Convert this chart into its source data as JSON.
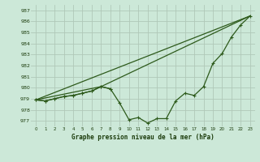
{
  "title": "Graphe pression niveau de la mer (hPa)",
  "bg_color": "#cce8d8",
  "grid_color": "#b0c8b8",
  "line_color": "#2d5a1b",
  "xlim": [
    -0.5,
    23.5
  ],
  "ylim": [
    976.5,
    987.5
  ],
  "yticks": [
    977,
    978,
    979,
    980,
    981,
    982,
    983,
    984,
    985,
    986,
    987
  ],
  "xticks": [
    0,
    1,
    2,
    3,
    4,
    5,
    6,
    7,
    8,
    9,
    10,
    11,
    12,
    13,
    14,
    15,
    16,
    17,
    18,
    19,
    20,
    21,
    22,
    23
  ],
  "line1_x": [
    0,
    1,
    2,
    3,
    4,
    5,
    6,
    7,
    8
  ],
  "line1_y": [
    978.9,
    978.8,
    979.0,
    979.2,
    979.3,
    979.5,
    979.7,
    980.1,
    979.9
  ],
  "line2_x": [
    0,
    1,
    2,
    3,
    4,
    5,
    6,
    7,
    8,
    9,
    10,
    11,
    12,
    13,
    14,
    15,
    16,
    17,
    18,
    19,
    20,
    21,
    22,
    23
  ],
  "line2_y": [
    978.9,
    978.8,
    979.0,
    979.2,
    979.3,
    979.5,
    979.7,
    980.1,
    979.9,
    978.6,
    977.1,
    977.3,
    976.8,
    977.2,
    977.2,
    978.8,
    979.5,
    979.3,
    980.1,
    982.2,
    983.1,
    984.6,
    985.7,
    986.5
  ],
  "line3_x": [
    0,
    23
  ],
  "line3_y": [
    978.9,
    986.5
  ],
  "line4_x": [
    0,
    7,
    23
  ],
  "line4_y": [
    978.9,
    980.1,
    986.5
  ]
}
